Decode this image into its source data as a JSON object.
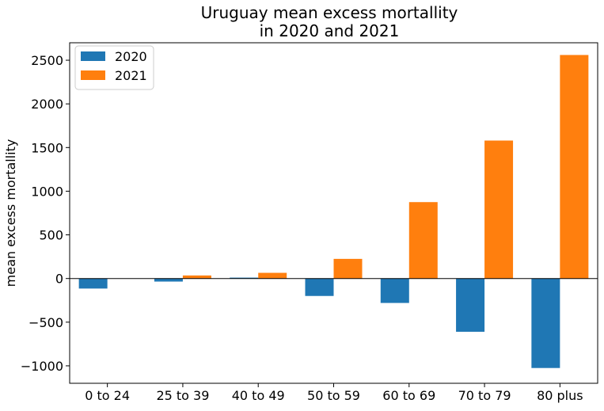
{
  "chart_data": {
    "type": "bar",
    "title": "Uruguay mean excess mortallity\nin 2020 and 2021",
    "title_lines": [
      "Uruguay mean excess mortallity",
      "in 2020 and 2021"
    ],
    "xlabel": "",
    "ylabel": "mean excess mortallity",
    "categories": [
      "0 to 24",
      "25 to 39",
      "40 to 49",
      "50 to 59",
      "60 to 69",
      "70 to 79",
      "80 plus"
    ],
    "series": [
      {
        "name": "2020",
        "color": "#1f77b4",
        "values": [
          -115,
          -35,
          10,
          -200,
          -280,
          -610,
          -1025
        ]
      },
      {
        "name": "2021",
        "color": "#ff7f0e",
        "values": [
          0,
          35,
          65,
          225,
          875,
          1580,
          2560
        ]
      }
    ],
    "ylim": [
      -1200,
      2700
    ],
    "yticks": [
      -1000,
      -500,
      0,
      500,
      1000,
      1500,
      2000,
      2500
    ],
    "ytick_labels": [
      "−1000",
      "−500",
      "0",
      "500",
      "1000",
      "1500",
      "2000",
      "2500"
    ],
    "zero_line": true,
    "grid": false,
    "legend": "top-left"
  }
}
